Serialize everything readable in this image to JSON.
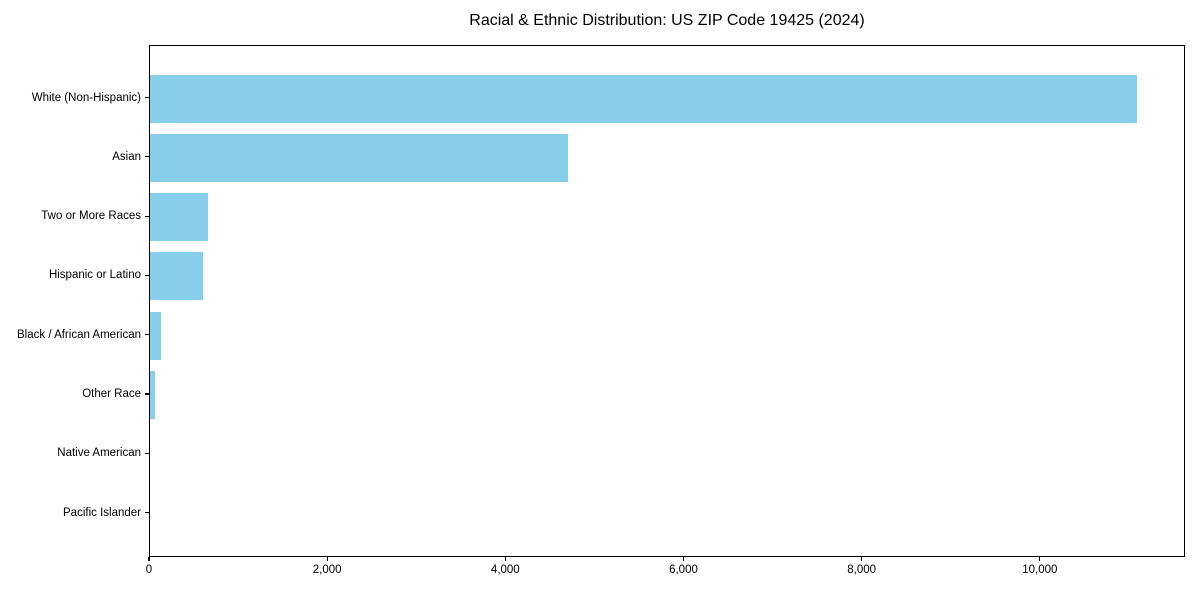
{
  "title": "Racial & Ethnic Distribution: US ZIP Code 19425 (2024)",
  "chart_data": {
    "type": "bar",
    "orientation": "horizontal",
    "title": "Racial & Ethnic Distribution: US ZIP Code 19425 (2024)",
    "categories": [
      "White (Non-Hispanic)",
      "Asian",
      "Two or More Races",
      "Hispanic or Latino",
      "Black / African American",
      "Other Race",
      "Native American",
      "Pacific Islander"
    ],
    "values": [
      11080,
      4690,
      650,
      600,
      120,
      55,
      0,
      0
    ],
    "xlabel": "",
    "ylabel": "",
    "xlim": [
      0,
      11630
    ],
    "xticks": [
      0,
      2000,
      4000,
      6000,
      8000,
      10000
    ],
    "xtick_labels": [
      "0",
      "2,000",
      "4,000",
      "6,000",
      "8,000",
      "10,000"
    ],
    "bar_color": "#87CEEB",
    "grid": false,
    "legend": null
  }
}
